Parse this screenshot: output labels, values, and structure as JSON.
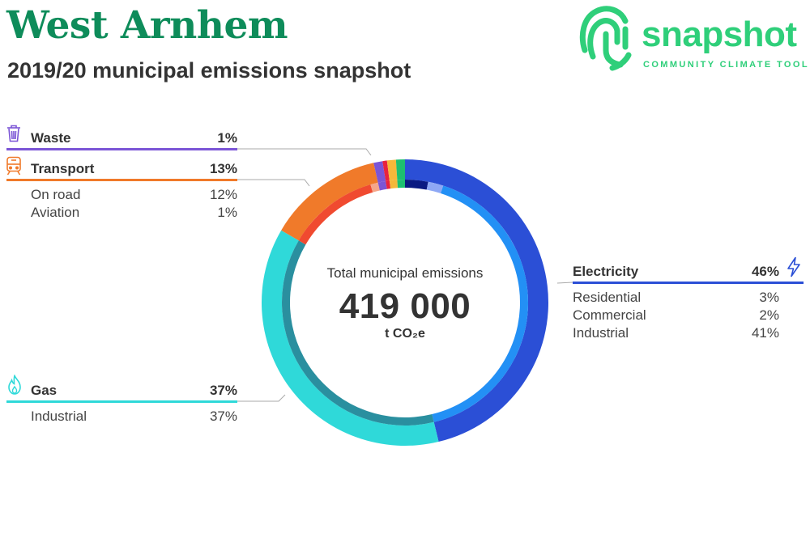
{
  "header": {
    "title": "West Arnhem",
    "subtitle": "2019/20 municipal emissions snapshot"
  },
  "brand": {
    "name": "snapshot",
    "tagline": "COMMUNITY CLIMATE TOOL",
    "color": "#2fcf7a"
  },
  "center": {
    "caption": "Total municipal emissions",
    "value": "419 000",
    "unit": "t CO₂e"
  },
  "chart_data": {
    "type": "pie",
    "title": "",
    "total": 419000,
    "unit": "t CO₂e",
    "sectors": [
      {
        "name": "Electricity",
        "percent": "46%",
        "value": 46,
        "color": "#2b4fd6",
        "icon": "lightning-icon",
        "subs": [
          {
            "name": "Residential",
            "percent": "3%",
            "value": 3,
            "color": "#0a1a82"
          },
          {
            "name": "Commercial",
            "percent": "2%",
            "value": 2,
            "color": "#8ea8f5"
          },
          {
            "name": "Industrial",
            "percent": "41%",
            "value": 41,
            "color": "#2390f5"
          }
        ]
      },
      {
        "name": "Gas",
        "percent": "37%",
        "value": 37,
        "color": "#2fd9d9",
        "icon": "flame-icon",
        "subs": [
          {
            "name": "Industrial",
            "percent": "37%",
            "value": 37,
            "color": "#2a8f9f"
          }
        ]
      },
      {
        "name": "Transport",
        "percent": "13%",
        "value": 13,
        "color": "#f07a2a",
        "icon": "train-icon",
        "subs": [
          {
            "name": "On road",
            "percent": "12%",
            "value": 12,
            "color": "#f04a30"
          },
          {
            "name": "Aviation",
            "percent": "1%",
            "value": 1,
            "color": "#f5a68a"
          }
        ]
      },
      {
        "name": "Waste",
        "percent": "1%",
        "value": 1,
        "color": "#7b55d6",
        "icon": "waste-bin-icon",
        "subs": []
      }
    ],
    "minor_segments": [
      {
        "value": 0.5,
        "color": "#e8233e"
      },
      {
        "value": 1,
        "color": "#f5b83a"
      },
      {
        "value": 1,
        "color": "#1dbf70"
      }
    ]
  }
}
